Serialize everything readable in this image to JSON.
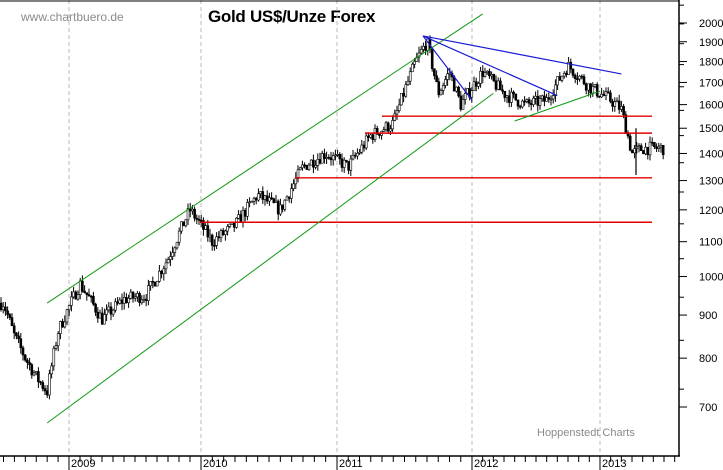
{
  "header": {
    "watermark": "www.chartbuero.de",
    "title": "Gold US$/Unze Forex"
  },
  "footer": {
    "credit": "Hoppenstedt Charts"
  },
  "colors": {
    "candles": "#000000",
    "channel_lines": "#119911",
    "trend_lines": "#1a1ad6",
    "support_lines": "#e00000",
    "grid": "#bbbbbb",
    "axis": "#000000"
  },
  "chart_data": {
    "type": "candlestick",
    "title": "Gold US$/Unze Forex",
    "xlabel": "",
    "ylabel": "",
    "y_scale": "log",
    "ylim": [
      640,
      2100
    ],
    "y_ticks": [
      700,
      800,
      900,
      1000,
      1100,
      1200,
      1300,
      1400,
      1500,
      1600,
      1700,
      1800,
      1900,
      2000
    ],
    "x_ticks": [
      "2009",
      "2010",
      "2011",
      "2012",
      "2013"
    ],
    "grid": "vertical dashed at year boundaries",
    "legend": null,
    "approx_price_path": [
      {
        "t": "2008-07",
        "price": 930
      },
      {
        "t": "2008-08",
        "price": 850
      },
      {
        "t": "2008-09",
        "price": 800
      },
      {
        "t": "2008-10",
        "price": 760
      },
      {
        "t": "2008-11",
        "price": 730
      },
      {
        "t": "2008-12",
        "price": 860
      },
      {
        "t": "2009-02",
        "price": 980
      },
      {
        "t": "2009-04",
        "price": 890
      },
      {
        "t": "2009-06",
        "price": 940
      },
      {
        "t": "2009-08",
        "price": 950
      },
      {
        "t": "2009-10",
        "price": 1050
      },
      {
        "t": "2009-12",
        "price": 1200
      },
      {
        "t": "2010-02",
        "price": 1100
      },
      {
        "t": "2010-04",
        "price": 1150
      },
      {
        "t": "2010-06",
        "price": 1250
      },
      {
        "t": "2010-08",
        "price": 1200
      },
      {
        "t": "2010-10",
        "price": 1350
      },
      {
        "t": "2010-12",
        "price": 1400
      },
      {
        "t": "2011-02",
        "price": 1350
      },
      {
        "t": "2011-04",
        "price": 1470
      },
      {
        "t": "2011-06",
        "price": 1520
      },
      {
        "t": "2011-08",
        "price": 1800
      },
      {
        "t": "2011-09",
        "price": 1900
      },
      {
        "t": "2011-10",
        "price": 1650
      },
      {
        "t": "2011-11",
        "price": 1750
      },
      {
        "t": "2011-12",
        "price": 1600
      },
      {
        "t": "2012-02",
        "price": 1750
      },
      {
        "t": "2012-04",
        "price": 1650
      },
      {
        "t": "2012-06",
        "price": 1600
      },
      {
        "t": "2012-08",
        "price": 1620
      },
      {
        "t": "2012-10",
        "price": 1780
      },
      {
        "t": "2012-12",
        "price": 1680
      },
      {
        "t": "2013-02",
        "price": 1620
      },
      {
        "t": "2013-03",
        "price": 1580
      },
      {
        "t": "2013-04",
        "price": 1400
      },
      {
        "t": "2013-05",
        "price": 1420
      }
    ],
    "annotations": {
      "horizontal_support_lines": [
        1550,
        1480,
        1310,
        1160
      ],
      "channel_lines": [
        {
          "name": "upper-channel",
          "from": {
            "t": "2008-11",
            "price": 930
          },
          "to": {
            "t": "2012-02",
            "price": 2050
          }
        },
        {
          "name": "lower-channel",
          "from": {
            "t": "2008-11",
            "price": 670
          },
          "to": {
            "t": "2012-03",
            "price": 1650
          }
        },
        {
          "name": "short-term-uptrend",
          "from": {
            "t": "2012-05",
            "price": 1530
          },
          "to": {
            "t": "2013-01",
            "price": 1660
          }
        }
      ],
      "downtrend_lines": [
        {
          "name": "long-downtrend",
          "from": {
            "t": "2011-09",
            "price": 1920
          },
          "to": {
            "t": "2013-03",
            "price": 1740
          }
        },
        {
          "name": "mid-downtrend",
          "from": {
            "t": "2011-09",
            "price": 1920
          },
          "to": {
            "t": "2012-09",
            "price": 1640
          }
        },
        {
          "name": "steep-downtrend",
          "from": {
            "t": "2011-09",
            "price": 1920
          },
          "to": {
            "t": "2012-01",
            "price": 1620
          }
        }
      ]
    }
  }
}
